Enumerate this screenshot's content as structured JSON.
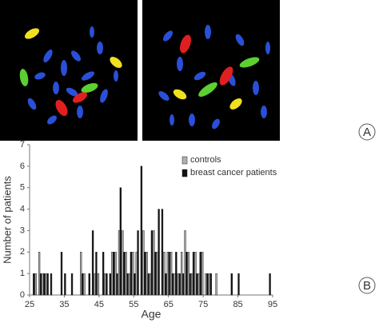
{
  "panels": {
    "a": "A",
    "b": "B"
  },
  "chart_data": {
    "type": "bar",
    "x_label": "Age",
    "y_label": "Number of patients",
    "x": [
      26,
      27,
      28,
      29,
      30,
      31,
      32,
      33,
      34,
      35,
      36,
      37,
      38,
      39,
      40,
      41,
      42,
      43,
      44,
      45,
      46,
      47,
      48,
      49,
      50,
      51,
      52,
      53,
      54,
      55,
      56,
      57,
      58,
      59,
      60,
      61,
      62,
      63,
      64,
      65,
      66,
      67,
      68,
      69,
      70,
      71,
      72,
      73,
      74,
      75,
      76,
      77,
      78,
      79,
      80,
      81,
      82,
      83,
      84,
      85,
      86,
      87,
      88,
      89,
      90,
      91,
      92,
      93,
      94
    ],
    "series": [
      {
        "name": "controls",
        "color": "#b0b0b0",
        "values": [
          0,
          1,
          2,
          1,
          1,
          0,
          0,
          0,
          0,
          0,
          0,
          0,
          0,
          0,
          2,
          1,
          0,
          0,
          1,
          1,
          0,
          1,
          0,
          2,
          2,
          3,
          3,
          2,
          1,
          2,
          2,
          0,
          3,
          2,
          1,
          3,
          2,
          0,
          2,
          2,
          2,
          1,
          1,
          2,
          3,
          2,
          1,
          2,
          1,
          2,
          1,
          1,
          0,
          1,
          0,
          0,
          0,
          0,
          0,
          0,
          0,
          0,
          0,
          0,
          0,
          0,
          0,
          0,
          0
        ]
      },
      {
        "name": "breast cancer patients",
        "color": "#111111",
        "values": [
          1,
          0,
          1,
          1,
          1,
          1,
          0,
          0,
          2,
          1,
          0,
          1,
          0,
          0,
          1,
          0,
          1,
          3,
          2,
          0,
          2,
          1,
          1,
          2,
          1,
          5,
          2,
          1,
          2,
          1,
          3,
          6,
          2,
          1,
          3,
          2,
          4,
          4,
          1,
          2,
          1,
          2,
          1,
          1,
          2,
          1,
          2,
          1,
          2,
          0,
          1,
          1,
          0,
          0,
          0,
          0,
          0,
          1,
          0,
          1,
          0,
          0,
          0,
          0,
          0,
          0,
          0,
          0,
          1
        ]
      }
    ],
    "xlim": [
      25,
      95
    ],
    "xticks": [
      25,
      35,
      45,
      55,
      65,
      75,
      85,
      95
    ],
    "ylim": [
      0,
      7
    ],
    "yticks": [
      0,
      1,
      2,
      3,
      4,
      5,
      6,
      7
    ],
    "legend": "top-right"
  }
}
